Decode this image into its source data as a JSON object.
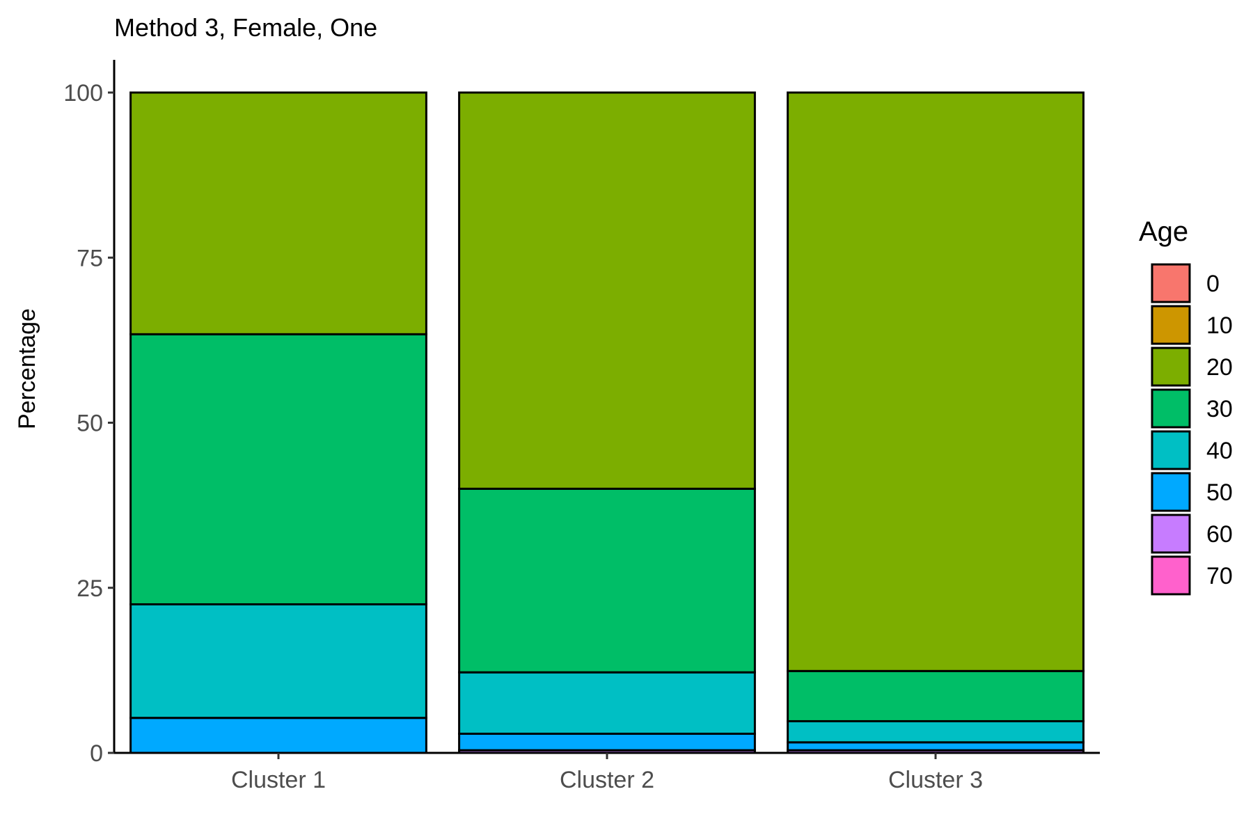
{
  "chart_data": {
    "type": "bar",
    "stacked": true,
    "title": "Method 3, Female, One",
    "xlabel": "",
    "ylabel": "Percentage",
    "ylim": [
      0,
      100
    ],
    "y_ticks": [
      0,
      25,
      50,
      75,
      100
    ],
    "categories": [
      "Cluster 1",
      "Cluster 2",
      "Cluster 3"
    ],
    "legend": {
      "title": "Age",
      "position": "right"
    },
    "series": [
      {
        "name": "0",
        "color": "#F8766D",
        "values": [
          0,
          0,
          0
        ]
      },
      {
        "name": "10",
        "color": "#CD9600",
        "values": [
          0,
          0,
          0
        ]
      },
      {
        "name": "20",
        "color": "#7CAE00",
        "values": [
          36.6,
          60.0,
          87.6
        ]
      },
      {
        "name": "30",
        "color": "#00BE67",
        "values": [
          40.9,
          27.8,
          7.6
        ]
      },
      {
        "name": "40",
        "color": "#00BFC4",
        "values": [
          17.2,
          9.3,
          3.2
        ]
      },
      {
        "name": "50",
        "color": "#00A9FF",
        "values": [
          5.3,
          2.5,
          1.2
        ]
      },
      {
        "name": "60",
        "color": "#C77CFF",
        "values": [
          0,
          0.4,
          0.4
        ]
      },
      {
        "name": "70",
        "color": "#FF61CC",
        "values": [
          0,
          0,
          0
        ]
      }
    ],
    "grid": false
  }
}
